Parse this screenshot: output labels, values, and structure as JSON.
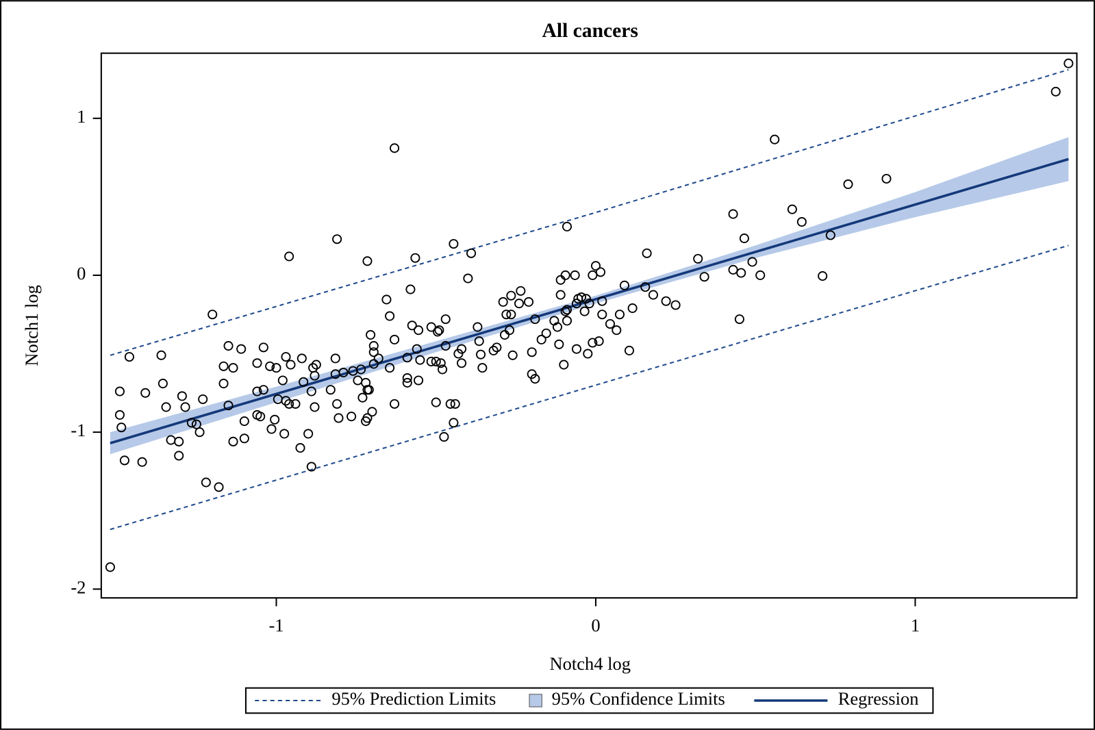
{
  "chart_data": {
    "type": "scatter",
    "title": "All cancers",
    "xlabel": "Notch4 log",
    "ylabel": "Notch1 log",
    "xlim": [
      -1.548,
      1.506
    ],
    "ylim": [
      -2.056,
      1.415
    ],
    "xticks": [
      -1,
      0,
      1
    ],
    "yticks": [
      -2,
      -1,
      0,
      1
    ],
    "scatter": {
      "color": "#000000",
      "x": [
        -1.52,
        -1.49,
        -1.49,
        -1.485,
        -1.475,
        -1.46,
        -1.42,
        -1.41,
        -1.36,
        -1.355,
        -1.345,
        -1.33,
        -1.305,
        -1.305,
        -1.295,
        -1.285,
        -1.265,
        -1.25,
        -1.24,
        -1.23,
        -1.22,
        -1.2,
        -1.18,
        -1.165,
        -1.165,
        -1.15,
        -1.15,
        -1.135,
        -1.135,
        -1.11,
        -1.1,
        -1.1,
        -1.06,
        -1.06,
        -1.06,
        -1.05,
        -1.04,
        -1.04,
        -1.02,
        -1.015,
        -1.005,
        -1.0,
        -0.995,
        -0.98,
        -0.975,
        -0.97,
        -0.97,
        -0.96,
        -0.96,
        -0.955,
        -0.94,
        -0.925,
        -0.92,
        -0.915,
        -0.9,
        -0.89,
        -0.89,
        -0.885,
        -0.88,
        -0.88,
        -0.875,
        -0.83,
        -0.815,
        -0.815,
        -0.81,
        -0.81,
        -0.805,
        -0.79,
        -0.765,
        -0.76,
        -0.745,
        -0.735,
        -0.73,
        -0.72,
        -0.72,
        -0.715,
        -0.715,
        -0.715,
        -0.71,
        -0.705,
        -0.7,
        -0.695,
        -0.695,
        -0.695,
        -0.68,
        -0.655,
        -0.645,
        -0.645,
        -0.63,
        -0.63,
        -0.63,
        -0.59,
        -0.59,
        -0.59,
        -0.58,
        -0.575,
        -0.565,
        -0.56,
        -0.555,
        -0.555,
        -0.55,
        -0.515,
        -0.515,
        -0.5,
        -0.5,
        -0.495,
        -0.49,
        -0.485,
        -0.48,
        -0.475,
        -0.47,
        -0.47,
        -0.455,
        -0.445,
        -0.445,
        -0.44,
        -0.43,
        -0.42,
        -0.42,
        -0.4,
        -0.39,
        -0.37,
        -0.365,
        -0.36,
        -0.355,
        -0.32,
        -0.31,
        -0.29,
        -0.285,
        -0.28,
        -0.27,
        -0.265,
        -0.265,
        -0.26,
        -0.24,
        -0.235,
        -0.21,
        -0.2,
        -0.2,
        -0.19,
        -0.19,
        -0.17,
        -0.155,
        -0.13,
        -0.12,
        -0.115,
        -0.11,
        -0.11,
        -0.1,
        -0.095,
        -0.095,
        -0.09,
        -0.09,
        -0.09,
        -0.065,
        -0.06,
        -0.06,
        -0.055,
        -0.045,
        -0.035,
        -0.03,
        -0.025,
        -0.02,
        -0.01,
        -0.01,
        0,
        0.01,
        0.015,
        0.02,
        0.02,
        0.045,
        0.065,
        0.075,
        0.09,
        0.105,
        0.115,
        0.155,
        0.16,
        0.18,
        0.22,
        0.25,
        0.32,
        0.34,
        0.43,
        0.43,
        0.45,
        0.455,
        0.465,
        0.49,
        0.515,
        0.56,
        0.615,
        0.645,
        0.71,
        0.735,
        0.79,
        0.91,
        1.44,
        1.48
      ],
      "y": [
        -1.86,
        -0.74,
        -0.89,
        -0.97,
        -1.18,
        -0.52,
        -1.19,
        -0.75,
        -0.51,
        -0.69,
        -0.84,
        -1.05,
        -1.06,
        -1.15,
        -0.77,
        -0.84,
        -0.94,
        -0.95,
        -1.0,
        -0.79,
        -1.32,
        -0.25,
        -1.35,
        -0.69,
        -0.58,
        -0.45,
        -0.83,
        -0.59,
        -1.06,
        -0.47,
        -0.93,
        -1.04,
        -0.56,
        -0.74,
        -0.89,
        -0.9,
        -0.46,
        -0.73,
        -0.58,
        -0.98,
        -0.92,
        -0.59,
        -0.79,
        -0.67,
        -1.01,
        -0.52,
        -0.8,
        -0.82,
        0.12,
        -0.57,
        -0.82,
        -1.1,
        -0.53,
        -0.68,
        -1.01,
        -1.22,
        -0.74,
        -0.59,
        -0.84,
        -0.64,
        -0.57,
        -0.73,
        -0.53,
        -0.63,
        0.23,
        -0.82,
        -0.91,
        -0.62,
        -0.9,
        -0.61,
        -0.67,
        -0.6,
        -0.78,
        -0.685,
        -0.93,
        -0.91,
        0.09,
        -0.73,
        -0.73,
        -0.38,
        -0.87,
        -0.565,
        -0.45,
        -0.49,
        -0.53,
        -0.155,
        -0.26,
        -0.59,
        0.81,
        -0.41,
        -0.82,
        -0.655,
        -0.685,
        -0.525,
        -0.09,
        -0.32,
        0.11,
        -0.47,
        -0.35,
        -0.67,
        -0.54,
        -0.55,
        -0.33,
        -0.55,
        -0.81,
        -0.36,
        -0.35,
        -0.56,
        -0.6,
        -1.03,
        -0.28,
        -0.45,
        -0.82,
        0.2,
        -0.94,
        -0.82,
        -0.5,
        -0.47,
        -0.56,
        -0.02,
        0.14,
        -0.33,
        -0.42,
        -0.505,
        -0.59,
        -0.48,
        -0.46,
        -0.17,
        -0.38,
        -0.25,
        -0.35,
        -0.13,
        -0.25,
        -0.51,
        -0.18,
        -0.1,
        -0.17,
        -0.49,
        -0.63,
        -0.66,
        -0.28,
        -0.41,
        -0.37,
        -0.29,
        -0.33,
        -0.44,
        -0.03,
        -0.125,
        -0.57,
        -0.23,
        0.0,
        -0.29,
        0.31,
        -0.22,
        0.0,
        -0.18,
        -0.47,
        -0.15,
        -0.14,
        -0.23,
        -0.15,
        -0.5,
        -0.18,
        0.0,
        -0.43,
        0.06,
        -0.42,
        0.02,
        -0.25,
        -0.165,
        -0.31,
        -0.35,
        -0.25,
        -0.065,
        -0.48,
        -0.21,
        -0.075,
        0.14,
        -0.125,
        -0.165,
        -0.19,
        0.105,
        -0.01,
        0.39,
        0.035,
        -0.28,
        0.015,
        0.235,
        0.085,
        0.0,
        0.865,
        0.42,
        0.34,
        -0.005,
        0.255,
        0.58,
        0.615,
        1.17,
        1.35
      ]
    },
    "prediction_limits": {
      "name": "95% Prediction Limits",
      "color": "#1f4a8c",
      "x": [
        -1.52,
        0,
        1.48
      ],
      "upper": [
        -0.51,
        0.4,
        1.31
      ],
      "lower": [
        -1.62,
        -0.7,
        0.19
      ]
    },
    "confidence_limits": {
      "name": "95% Confidence Limits",
      "color": "#b6c9e8",
      "x": [
        -1.52,
        -1,
        -0.5,
        0,
        0.5,
        1,
        1.48
      ],
      "lower": [
        -1.14,
        -0.81,
        -0.49,
        -0.18,
        0.11,
        0.37,
        0.6
      ],
      "upper": [
        -1.0,
        -0.71,
        -0.42,
        -0.13,
        0.19,
        0.53,
        0.88
      ]
    },
    "regression": {
      "name": "Regression",
      "color": "#14397a",
      "x": [
        -1.52,
        1.48
      ],
      "y": [
        -1.07,
        0.74
      ]
    }
  }
}
